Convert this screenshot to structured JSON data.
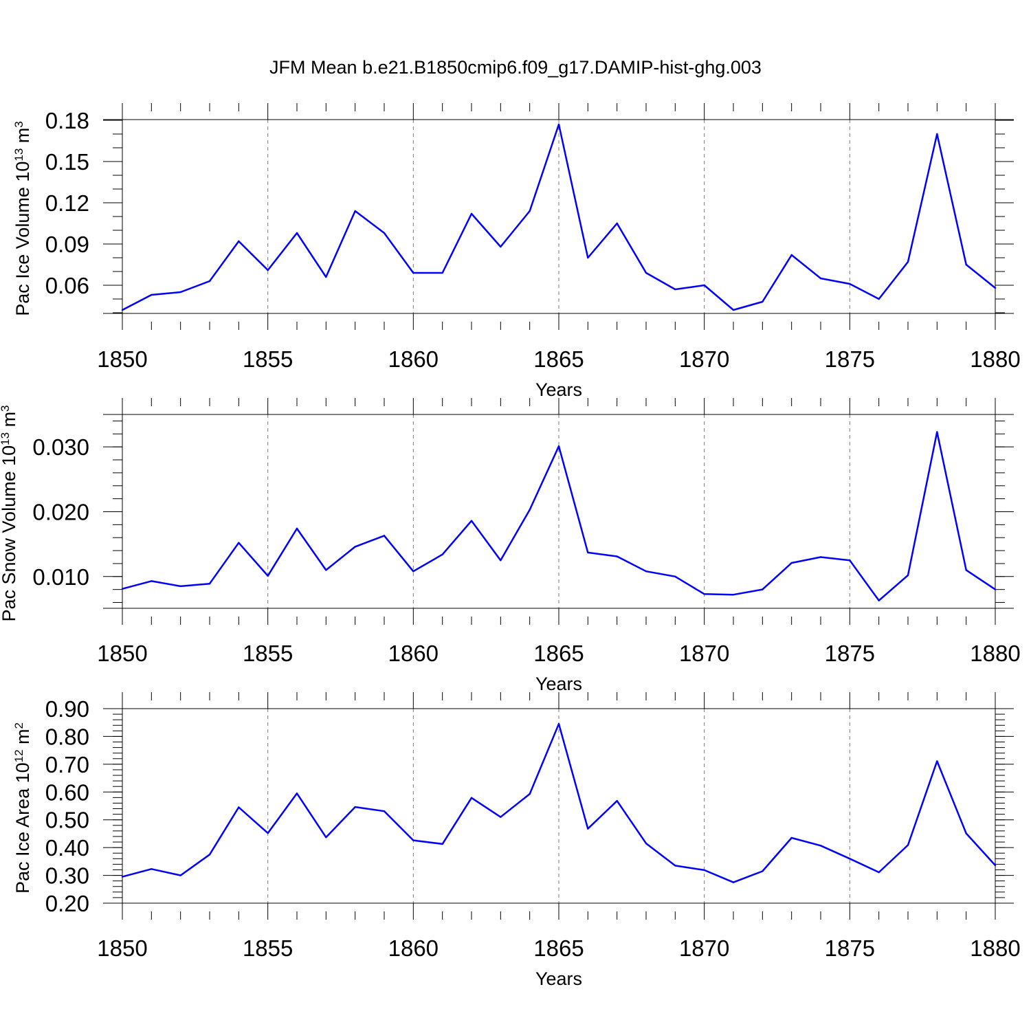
{
  "title": "JFM Mean b.e21.B1850cmip6.f09_g17.DAMIP-hist-ghg.003",
  "colors": {
    "line": "#0000ff",
    "axis": "#000000",
    "grid": "#777777"
  },
  "chart_data": [
    {
      "type": "line",
      "title": "",
      "xlabel": "Years",
      "ylabel_main": "Pac Ice Volume 10",
      "ylabel_exp": "13",
      "ylabel_unit": " m",
      "ylabel_unit_exp": "3",
      "xlim": [
        1850,
        1880
      ],
      "ylim": [
        0.0395,
        0.1805
      ],
      "x_ticks": [
        1850,
        1855,
        1860,
        1865,
        1870,
        1875,
        1880
      ],
      "y_ticks": [
        0.06,
        0.09,
        0.12,
        0.15,
        0.18
      ],
      "y_tick_labels": [
        "0.06",
        "0.09",
        "0.12",
        "0.15",
        "0.18"
      ],
      "y_minor_step": 0.01,
      "x": [
        1850,
        1851,
        1852,
        1853,
        1854,
        1855,
        1856,
        1857,
        1858,
        1859,
        1860,
        1861,
        1862,
        1863,
        1864,
        1865,
        1866,
        1867,
        1868,
        1869,
        1870,
        1871,
        1872,
        1873,
        1874,
        1875,
        1876,
        1877,
        1878,
        1879,
        1880
      ],
      "series": [
        {
          "name": "Pac Ice Volume",
          "values": [
            0.042,
            0.053,
            0.055,
            0.063,
            0.092,
            0.071,
            0.098,
            0.066,
            0.114,
            0.098,
            0.069,
            0.069,
            0.112,
            0.088,
            0.114,
            0.177,
            0.08,
            0.105,
            0.069,
            0.057,
            0.06,
            0.042,
            0.048,
            0.082,
            0.065,
            0.061,
            0.05,
            0.077,
            0.17,
            0.075,
            0.058
          ]
        }
      ]
    },
    {
      "type": "line",
      "title": "",
      "xlabel": "Years",
      "ylabel_main": "Pac Snow Volume 10",
      "ylabel_exp": "13",
      "ylabel_unit": " m",
      "ylabel_unit_exp": "3",
      "xlim": [
        1850,
        1880
      ],
      "ylim": [
        0.0051,
        0.035
      ],
      "x_ticks": [
        1850,
        1855,
        1860,
        1865,
        1870,
        1875,
        1880
      ],
      "y_ticks": [
        0.01,
        0.02,
        0.03
      ],
      "y_tick_labels": [
        "0.010",
        "0.020",
        "0.030"
      ],
      "y_minor_step": 0.002,
      "x": [
        1850,
        1851,
        1852,
        1853,
        1854,
        1855,
        1856,
        1857,
        1858,
        1859,
        1860,
        1861,
        1862,
        1863,
        1864,
        1865,
        1866,
        1867,
        1868,
        1869,
        1870,
        1871,
        1872,
        1873,
        1874,
        1875,
        1876,
        1877,
        1878,
        1879,
        1880
      ],
      "series": [
        {
          "name": "Pac Snow Volume",
          "values": [
            0.0081,
            0.0093,
            0.0085,
            0.0089,
            0.0152,
            0.0101,
            0.0174,
            0.011,
            0.0146,
            0.0163,
            0.0108,
            0.0134,
            0.0186,
            0.0125,
            0.0203,
            0.0301,
            0.0137,
            0.0131,
            0.0108,
            0.01,
            0.0073,
            0.0072,
            0.008,
            0.0121,
            0.013,
            0.0125,
            0.0063,
            0.0102,
            0.0323,
            0.011,
            0.008
          ]
        }
      ]
    },
    {
      "type": "line",
      "title": "",
      "xlabel": "Years",
      "ylabel_main": "Pac Ice Area 10",
      "ylabel_exp": "12",
      "ylabel_unit": " m",
      "ylabel_unit_exp": "2",
      "xlim": [
        1850,
        1880
      ],
      "ylim": [
        0.2,
        0.9
      ],
      "x_ticks": [
        1850,
        1855,
        1860,
        1865,
        1870,
        1875,
        1880
      ],
      "y_ticks": [
        0.2,
        0.3,
        0.4,
        0.5,
        0.6,
        0.7,
        0.8,
        0.9
      ],
      "y_tick_labels": [
        "0.20",
        "0.30",
        "0.40",
        "0.50",
        "0.60",
        "0.70",
        "0.80",
        "0.90"
      ],
      "y_minor_step": 0.02,
      "x": [
        1850,
        1851,
        1852,
        1853,
        1854,
        1855,
        1856,
        1857,
        1858,
        1859,
        1860,
        1861,
        1862,
        1863,
        1864,
        1865,
        1866,
        1867,
        1868,
        1869,
        1870,
        1871,
        1872,
        1873,
        1874,
        1875,
        1876,
        1877,
        1878,
        1879,
        1880
      ],
      "series": [
        {
          "name": "Pac Ice Area",
          "values": [
            0.295,
            0.323,
            0.3,
            0.375,
            0.545,
            0.452,
            0.595,
            0.437,
            0.546,
            0.531,
            0.426,
            0.413,
            0.579,
            0.51,
            0.593,
            0.845,
            0.468,
            0.568,
            0.415,
            0.335,
            0.319,
            0.275,
            0.315,
            0.435,
            0.407,
            0.36,
            0.311,
            0.409,
            0.711,
            0.451,
            0.336
          ]
        }
      ]
    }
  ]
}
